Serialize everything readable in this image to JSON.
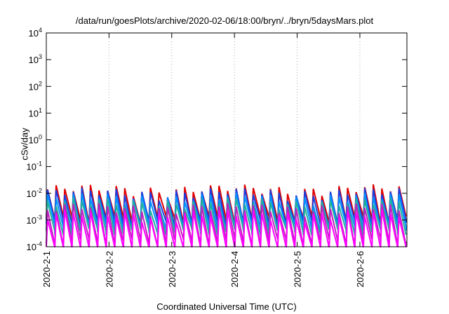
{
  "chart_data": {
    "type": "line",
    "title": "/data/run/goesPlots/archive/2020-02-06/18:00/bryn/../bryn/5daysMars.plot",
    "xlabel": "Coordinated Universal Time (UTC)",
    "ylabel": "cSv/day",
    "y_scale": "log",
    "ylim": [
      0.0001,
      10000
    ],
    "y_tick_base": "10",
    "y_ticks": [
      {
        "exp": "4"
      },
      {
        "exp": "3"
      },
      {
        "exp": "2"
      },
      {
        "exp": "1"
      },
      {
        "exp": "0"
      },
      {
        "exp": "-1"
      },
      {
        "exp": "-2"
      },
      {
        "exp": "-3"
      },
      {
        "exp": "-4"
      }
    ],
    "xlim": [
      "2020-02-01 00:00",
      "2020-02-06 18:00"
    ],
    "x_ticks": [
      "2020-2-1",
      "2020-2-2",
      "2020-2-3",
      "2020-2-4",
      "2020-2-5",
      "2020-2-6"
    ],
    "grid": true,
    "colors": [
      "#e00000",
      "#1a3fe0",
      "#0090ff",
      "#20b0a0",
      "#c020c0",
      "#ff00ff"
    ],
    "cycle_hours": 3.28,
    "series": [
      {
        "color": "#e00000",
        "peak": 0.014,
        "trough": 0.0011
      },
      {
        "color": "#1a3fe0",
        "peak": 0.0105,
        "trough": 0.0008
      },
      {
        "color": "#0090ff",
        "peak": 0.0068,
        "trough": 0.00055
      },
      {
        "color": "#20b0a0",
        "peak": 0.0045,
        "trough": 0.00038
      },
      {
        "color": "#c020c0",
        "peak": 0.0028,
        "trough": 0.00016
      },
      {
        "color": "#ff00ff",
        "peak": 0.0016,
        "trough": 6e-05
      }
    ]
  }
}
